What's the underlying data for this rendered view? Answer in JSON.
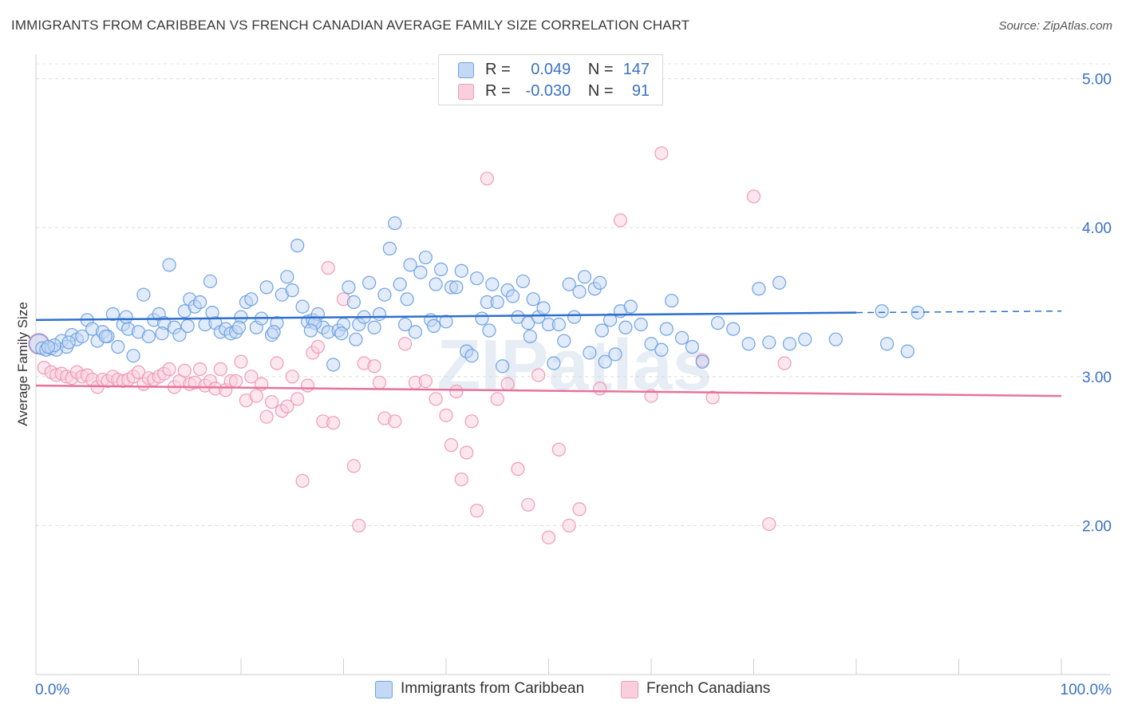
{
  "title": "IMMIGRANTS FROM CARIBBEAN VS FRENCH CANADIAN AVERAGE FAMILY SIZE CORRELATION CHART",
  "source": "Source: ZipAtlas.com",
  "watermark": "ZIPatlas",
  "legend": {
    "series1": {
      "r_label": "R =",
      "r_value": "0.049",
      "n_label": "N =",
      "n_value": "147"
    },
    "series2": {
      "r_label": "R =",
      "r_value": "-0.030",
      "n_label": "N =",
      "n_value": "91"
    }
  },
  "colors": {
    "blue": "#6fa3e4",
    "blue_line": "#2e6fcf",
    "pink": "#f09ab8",
    "pink_line": "#e8729a",
    "tick_text": "#3b72c4"
  },
  "chart_data": {
    "type": "scatter",
    "title": "IMMIGRANTS FROM CARIBBEAN VS FRENCH CANADIAN AVERAGE FAMILY SIZE CORRELATION CHART",
    "xlabel": "",
    "ylabel": "Average Family Size",
    "xlim": [
      0,
      100
    ],
    "ylim": [
      1.0,
      5.1
    ],
    "x_tick_labels": [
      "0.0%",
      "100.0%"
    ],
    "y_ticks": [
      2.0,
      3.0,
      4.0,
      5.0
    ],
    "y_tick_labels": [
      "2.00",
      "3.00",
      "4.00",
      "5.00"
    ],
    "series": [
      {
        "name": "Immigrants from Caribbean",
        "color": "#6fa3e4",
        "trend": {
          "x0": 0,
          "y0": 3.38,
          "x1": 80,
          "y1": 3.43,
          "dash_to_x": 100,
          "dash_to_y": 3.44
        },
        "points": [
          [
            0.3,
            3.22
          ],
          [
            0.6,
            3.19
          ],
          [
            1.0,
            3.18
          ],
          [
            1.5,
            3.19
          ],
          [
            2.0,
            3.18
          ],
          [
            2.5,
            3.24
          ],
          [
            3.0,
            3.2
          ],
          [
            3.5,
            3.28
          ],
          [
            4.0,
            3.25
          ],
          [
            4.5,
            3.27
          ],
          [
            5.0,
            3.38
          ],
          [
            5.5,
            3.32
          ],
          [
            6.0,
            3.24
          ],
          [
            6.5,
            3.3
          ],
          [
            7.0,
            3.27
          ],
          [
            7.5,
            3.42
          ],
          [
            8.0,
            3.2
          ],
          [
            8.5,
            3.35
          ],
          [
            9.0,
            3.32
          ],
          [
            9.5,
            3.14
          ],
          [
            10.0,
            3.3
          ],
          [
            10.5,
            3.55
          ],
          [
            11.0,
            3.27
          ],
          [
            11.5,
            3.38
          ],
          [
            12.0,
            3.42
          ],
          [
            12.5,
            3.36
          ],
          [
            13.0,
            3.75
          ],
          [
            13.5,
            3.33
          ],
          [
            14.0,
            3.28
          ],
          [
            14.5,
            3.44
          ],
          [
            15.0,
            3.52
          ],
          [
            15.5,
            3.47
          ],
          [
            16.0,
            3.5
          ],
          [
            16.5,
            3.35
          ],
          [
            17.0,
            3.64
          ],
          [
            17.5,
            3.36
          ],
          [
            18.0,
            3.3
          ],
          [
            18.5,
            3.32
          ],
          [
            19.0,
            3.29
          ],
          [
            19.5,
            3.3
          ],
          [
            20.0,
            3.4
          ],
          [
            20.5,
            3.5
          ],
          [
            21.0,
            3.52
          ],
          [
            21.5,
            3.33
          ],
          [
            22.0,
            3.39
          ],
          [
            22.5,
            3.6
          ],
          [
            23.0,
            3.28
          ],
          [
            23.5,
            3.36
          ],
          [
            24.0,
            3.55
          ],
          [
            24.5,
            3.67
          ],
          [
            25.0,
            3.58
          ],
          [
            25.5,
            3.88
          ],
          [
            26.0,
            3.47
          ],
          [
            26.5,
            3.37
          ],
          [
            27.0,
            3.38
          ],
          [
            27.5,
            3.42
          ],
          [
            28.0,
            3.33
          ],
          [
            28.5,
            3.3
          ],
          [
            29.0,
            3.08
          ],
          [
            29.5,
            3.31
          ],
          [
            30.0,
            3.35
          ],
          [
            30.5,
            3.6
          ],
          [
            31.0,
            3.5
          ],
          [
            31.5,
            3.35
          ],
          [
            32.0,
            3.4
          ],
          [
            32.5,
            3.63
          ],
          [
            33.0,
            3.33
          ],
          [
            33.5,
            3.42
          ],
          [
            34.0,
            3.55
          ],
          [
            34.5,
            3.86
          ],
          [
            35.0,
            4.03
          ],
          [
            35.5,
            3.62
          ],
          [
            36.0,
            3.35
          ],
          [
            36.5,
            3.75
          ],
          [
            37.0,
            3.3
          ],
          [
            37.5,
            3.7
          ],
          [
            38.0,
            3.8
          ],
          [
            38.5,
            3.38
          ],
          [
            39.0,
            3.62
          ],
          [
            39.5,
            3.72
          ],
          [
            40.0,
            3.37
          ],
          [
            40.5,
            3.6
          ],
          [
            41.0,
            3.6
          ],
          [
            41.5,
            3.71
          ],
          [
            42.0,
            3.17
          ],
          [
            42.5,
            3.14
          ],
          [
            43.0,
            3.66
          ],
          [
            43.5,
            3.39
          ],
          [
            44.0,
            3.5
          ],
          [
            44.5,
            3.62
          ],
          [
            45.0,
            3.5
          ],
          [
            45.5,
            3.07
          ],
          [
            46.0,
            3.58
          ],
          [
            46.5,
            3.54
          ],
          [
            47.0,
            3.4
          ],
          [
            47.5,
            3.64
          ],
          [
            48.0,
            3.36
          ],
          [
            48.5,
            3.52
          ],
          [
            49.0,
            3.4
          ],
          [
            49.5,
            3.46
          ],
          [
            50.0,
            3.35
          ],
          [
            50.5,
            3.09
          ],
          [
            51.0,
            3.35
          ],
          [
            51.5,
            3.24
          ],
          [
            52.0,
            3.62
          ],
          [
            52.5,
            3.4
          ],
          [
            53.0,
            3.57
          ],
          [
            53.5,
            3.67
          ],
          [
            54.0,
            3.16
          ],
          [
            54.5,
            3.59
          ],
          [
            55.0,
            3.63
          ],
          [
            55.5,
            3.1
          ],
          [
            56.0,
            3.38
          ],
          [
            56.5,
            3.15
          ],
          [
            57.0,
            3.44
          ],
          [
            57.5,
            3.33
          ],
          [
            58.0,
            3.47
          ],
          [
            59.0,
            3.35
          ],
          [
            60.0,
            3.22
          ],
          [
            61.0,
            3.18
          ],
          [
            62.0,
            3.51
          ],
          [
            63.0,
            3.26
          ],
          [
            64.0,
            3.2
          ],
          [
            65.0,
            3.1
          ],
          [
            66.5,
            3.36
          ],
          [
            68.0,
            3.32
          ],
          [
            69.5,
            3.22
          ],
          [
            70.5,
            3.59
          ],
          [
            71.5,
            3.23
          ],
          [
            72.5,
            3.63
          ],
          [
            73.5,
            3.22
          ],
          [
            75.0,
            3.25
          ],
          [
            78.0,
            3.25
          ],
          [
            82.5,
            3.44
          ],
          [
            83.0,
            3.22
          ],
          [
            85.0,
            3.17
          ],
          [
            86.0,
            3.43
          ],
          [
            12.3,
            3.29
          ],
          [
            17.2,
            3.43
          ],
          [
            23.2,
            3.3
          ],
          [
            27.2,
            3.36
          ],
          [
            31.2,
            3.25
          ],
          [
            36.2,
            3.52
          ],
          [
            44.2,
            3.31
          ],
          [
            48.2,
            3.27
          ],
          [
            55.2,
            3.31
          ],
          [
            61.5,
            3.32
          ],
          [
            1.8,
            3.21
          ],
          [
            3.2,
            3.23
          ],
          [
            6.8,
            3.27
          ],
          [
            8.8,
            3.4
          ],
          [
            14.8,
            3.34
          ],
          [
            19.8,
            3.33
          ],
          [
            26.8,
            3.31
          ],
          [
            29.8,
            3.29
          ],
          [
            38.8,
            3.34
          ],
          [
            1.2,
            3.2
          ]
        ]
      },
      {
        "name": "French Canadians",
        "color": "#f09ab8",
        "trend": {
          "x0": 0,
          "y0": 2.94,
          "x1": 100,
          "y1": 2.87
        },
        "points": [
          [
            0.3,
            3.22
          ],
          [
            0.8,
            3.06
          ],
          [
            1.5,
            3.03
          ],
          [
            2.0,
            3.01
          ],
          [
            2.5,
            3.02
          ],
          [
            3.0,
            3.0
          ],
          [
            3.5,
            2.99
          ],
          [
            4.0,
            3.03
          ],
          [
            4.5,
            3.0
          ],
          [
            5.0,
            3.01
          ],
          [
            5.5,
            2.98
          ],
          [
            6.0,
            2.93
          ],
          [
            6.5,
            2.98
          ],
          [
            7.0,
            2.97
          ],
          [
            7.5,
            3.0
          ],
          [
            8.0,
            2.98
          ],
          [
            8.5,
            2.97
          ],
          [
            9.0,
            2.98
          ],
          [
            9.5,
            3.0
          ],
          [
            10.0,
            3.03
          ],
          [
            10.5,
            2.95
          ],
          [
            11.0,
            2.99
          ],
          [
            11.5,
            2.98
          ],
          [
            12.0,
            3.0
          ],
          [
            12.5,
            3.02
          ],
          [
            13.0,
            3.05
          ],
          [
            13.5,
            2.93
          ],
          [
            14.0,
            2.97
          ],
          [
            14.5,
            3.04
          ],
          [
            15.0,
            2.95
          ],
          [
            15.5,
            2.96
          ],
          [
            16.0,
            3.05
          ],
          [
            16.5,
            2.94
          ],
          [
            17.0,
            2.97
          ],
          [
            17.5,
            2.92
          ],
          [
            18.0,
            3.05
          ],
          [
            18.5,
            2.91
          ],
          [
            19.0,
            2.97
          ],
          [
            19.5,
            2.97
          ],
          [
            20.0,
            3.1
          ],
          [
            20.5,
            2.84
          ],
          [
            21.0,
            3.0
          ],
          [
            21.5,
            2.87
          ],
          [
            22.0,
            2.95
          ],
          [
            22.5,
            2.73
          ],
          [
            23.0,
            2.83
          ],
          [
            23.5,
            3.09
          ],
          [
            24.0,
            2.77
          ],
          [
            24.5,
            2.8
          ],
          [
            25.0,
            3.0
          ],
          [
            25.5,
            2.85
          ],
          [
            26.0,
            2.3
          ],
          [
            26.5,
            2.94
          ],
          [
            27.0,
            3.16
          ],
          [
            27.5,
            3.2
          ],
          [
            28.0,
            2.7
          ],
          [
            28.5,
            3.73
          ],
          [
            29.0,
            2.69
          ],
          [
            30.0,
            3.52
          ],
          [
            31.0,
            2.4
          ],
          [
            31.5,
            2.0
          ],
          [
            32.0,
            3.09
          ],
          [
            33.0,
            3.07
          ],
          [
            33.5,
            2.96
          ],
          [
            34.0,
            2.72
          ],
          [
            35.0,
            2.7
          ],
          [
            36.0,
            3.22
          ],
          [
            37.0,
            2.96
          ],
          [
            38.0,
            2.97
          ],
          [
            39.0,
            2.85
          ],
          [
            40.0,
            2.74
          ],
          [
            40.5,
            2.54
          ],
          [
            41.0,
            2.9
          ],
          [
            41.5,
            2.31
          ],
          [
            42.0,
            2.49
          ],
          [
            42.5,
            2.7
          ],
          [
            43.0,
            2.1
          ],
          [
            44.0,
            4.33
          ],
          [
            45.0,
            2.85
          ],
          [
            46.0,
            2.95
          ],
          [
            47.0,
            2.38
          ],
          [
            48.0,
            2.14
          ],
          [
            49.0,
            3.01
          ],
          [
            50.0,
            1.92
          ],
          [
            51.0,
            2.51
          ],
          [
            52.0,
            2.0
          ],
          [
            53.0,
            2.11
          ],
          [
            55.0,
            2.92
          ],
          [
            57.0,
            4.05
          ],
          [
            60.0,
            2.87
          ],
          [
            61.0,
            4.5
          ],
          [
            65.0,
            3.11
          ],
          [
            66.0,
            2.86
          ],
          [
            70.0,
            4.21
          ],
          [
            71.5,
            2.01
          ],
          [
            73.0,
            3.09
          ]
        ]
      }
    ]
  },
  "bottom_legend": {
    "series1_label": "Immigrants from Caribbean",
    "series2_label": "French Canadians"
  }
}
